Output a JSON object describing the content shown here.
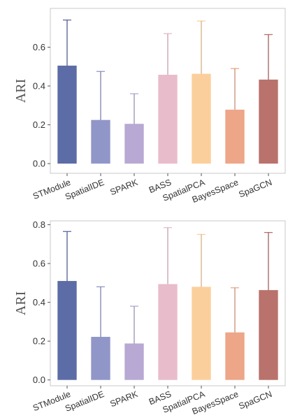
{
  "colors": {
    "STModule": "#5c6ca6",
    "SpatialDE": "#9196c9",
    "SPARK": "#b7a9d3",
    "BASS": "#e8bccb",
    "SpatialPCA": "#fbcf9c",
    "BayesSpace": "#eda688",
    "SpaGCN": "#b9726c",
    "frame": "#c8c8c8",
    "axis_text": "#333333",
    "whisker": "#000000"
  },
  "chart_data": [
    {
      "type": "bar",
      "ylabel": "ARI",
      "ylim": [
        -0.05,
        0.8
      ],
      "yticks": [
        0.0,
        0.2,
        0.4,
        0.6
      ],
      "ytick_labels": [
        "0.0",
        "0.2",
        "0.4",
        "0.6"
      ],
      "categories": [
        "STModule",
        "SpatialIDE",
        "SPARK",
        "BASS",
        "SpatialPCA",
        "BayesSpace",
        "SpaGCN"
      ],
      "values": [
        0.505,
        0.225,
        0.205,
        0.458,
        0.463,
        0.278,
        0.433
      ],
      "error_upper": [
        0.74,
        0.475,
        0.36,
        0.67,
        0.735,
        0.49,
        0.665
      ],
      "error_lower": [
        0.27,
        0.0,
        0.0,
        0.0,
        0.0,
        0.0,
        0.0
      ],
      "grid": false
    },
    {
      "type": "bar",
      "ylabel": "ARI",
      "ylim": [
        -0.03,
        0.82
      ],
      "yticks": [
        0.0,
        0.2,
        0.4,
        0.6,
        0.8
      ],
      "ytick_labels": [
        "0.0",
        "0.2",
        "0.4",
        "0.6",
        "0.8"
      ],
      "categories": [
        "STModule",
        "SpatialIDE",
        "SPARK",
        "BASS",
        "SpatialPCA",
        "BayesSpace",
        "SpaGCN"
      ],
      "values": [
        0.51,
        0.222,
        0.188,
        0.494,
        0.48,
        0.245,
        0.463
      ],
      "error_upper": [
        0.765,
        0.48,
        0.38,
        0.785,
        0.75,
        0.475,
        0.76
      ],
      "error_lower": [
        0.255,
        0.0,
        0.0,
        0.0,
        0.0,
        0.0,
        0.0
      ],
      "grid": false
    }
  ]
}
